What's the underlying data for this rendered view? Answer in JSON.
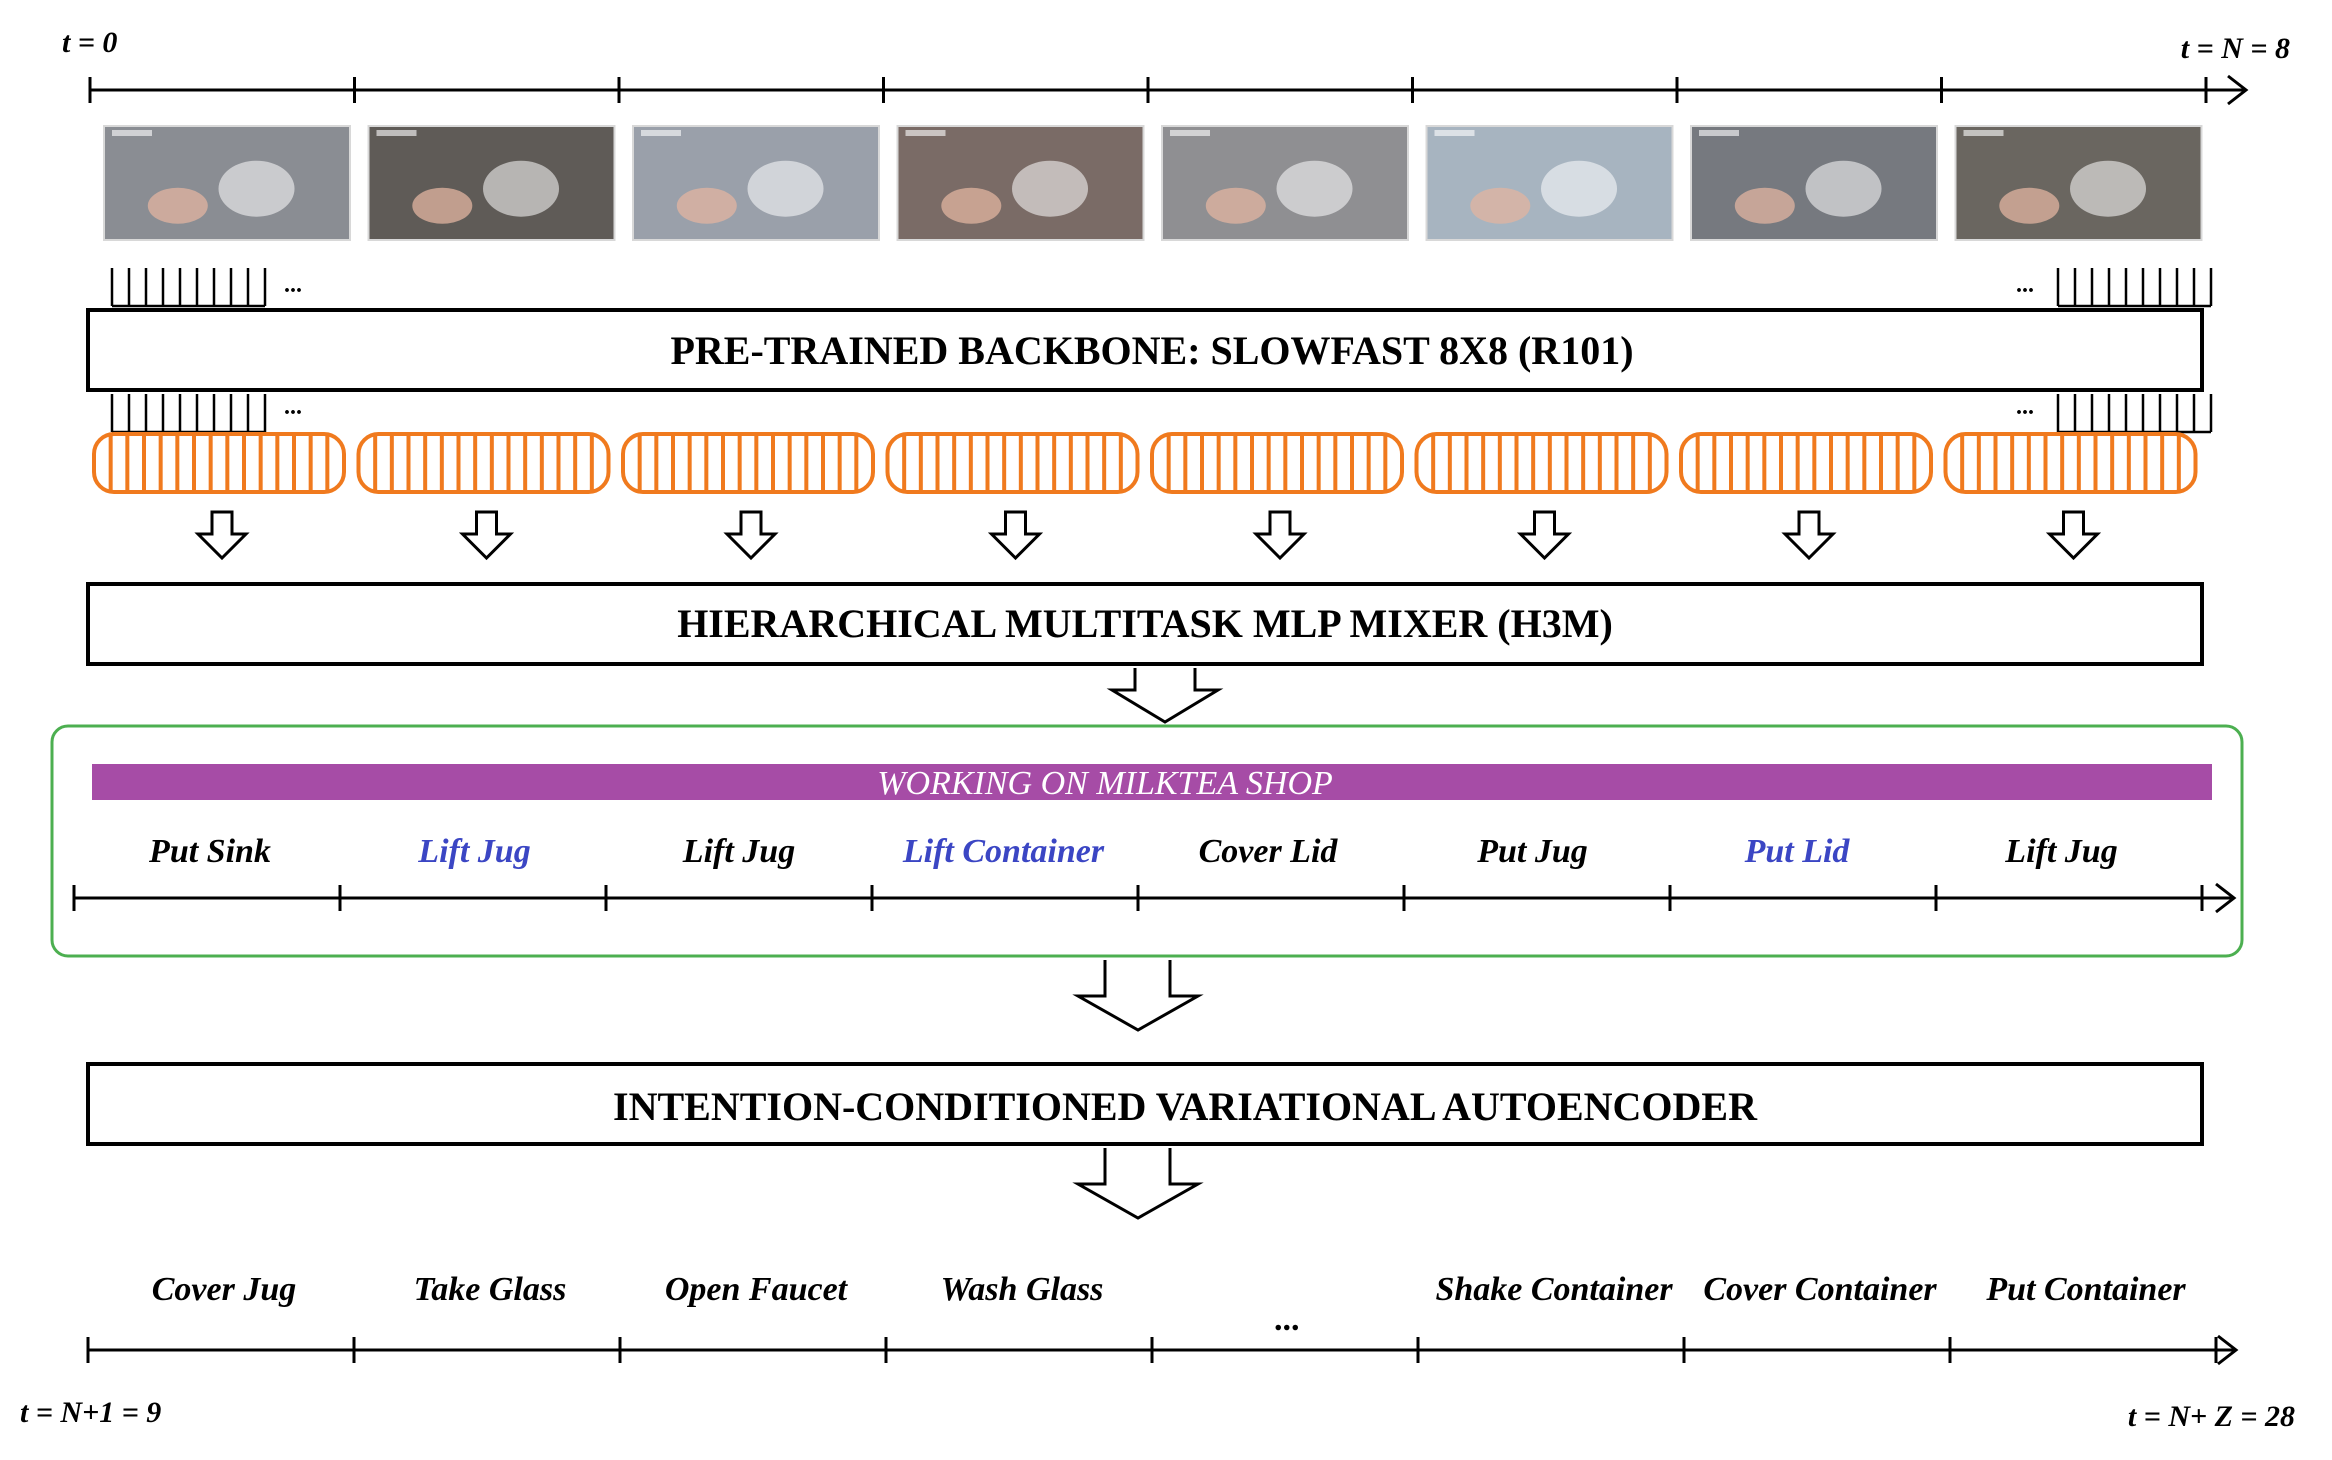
{
  "timeline_top": {
    "start_label": "t = 0",
    "end_label": "t = N = 8",
    "frames": 8
  },
  "frame_colors": [
    "#8a8d93",
    "#5f5b57",
    "#9aa0aa",
    "#7a6b66",
    "#8f8f92",
    "#a7b4c0",
    "#76797f",
    "#6a6660"
  ],
  "backbone": {
    "title": "PRE-TRAINED BACKBONE: SLOWFAST 8X8 (R101)",
    "dots_left": "...",
    "dots_right": "..."
  },
  "mixer": {
    "title": "HIERARCHICAL MULTITASK MLP MIXER (H3M)"
  },
  "intention": {
    "label": "WORKING ON MILKTEA SHOP",
    "band_color": "#a64ca6",
    "border_color": "#4caf50",
    "highlight_color": "#3b46c4",
    "actions": [
      {
        "text": "Put Sink",
        "highlight": false
      },
      {
        "text": "Lift Jug",
        "highlight": true
      },
      {
        "text": "Lift Jug",
        "highlight": false
      },
      {
        "text": "Lift Container",
        "highlight": true
      },
      {
        "text": "Cover Lid",
        "highlight": false
      },
      {
        "text": "Put Jug",
        "highlight": false
      },
      {
        "text": "Put Lid",
        "highlight": true
      },
      {
        "text": "Lift Jug",
        "highlight": false
      }
    ]
  },
  "vae": {
    "title": "INTENTION-CONDITIONED VARIATIONAL AUTOENCODER"
  },
  "future": {
    "actions": [
      "Cover Jug",
      "Take Glass",
      "Open Faucet",
      "Wash Glass",
      "...",
      "Shake Container",
      "Cover Container",
      "Put Container"
    ],
    "start_label": "t = N+1 = 9",
    "end_label": "t = N+ Z  = 28"
  },
  "token_color": "#f07a1e",
  "icons": {
    "down_arrow": "down-arrow-icon",
    "big_arrow": "big-down-arrow-icon"
  }
}
